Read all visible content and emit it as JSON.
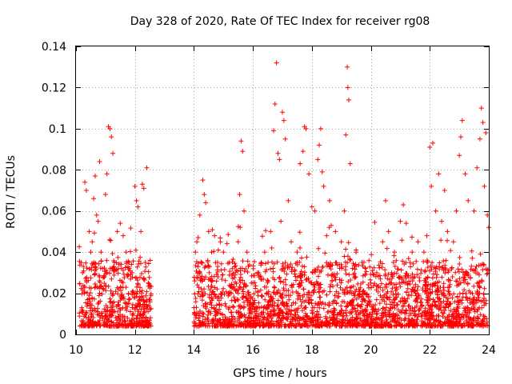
{
  "chart_data": {
    "type": "scatter",
    "title": "Day 328 of 2020, Rate Of TEC Index for receiver rg08",
    "xlabel": "GPS time / hours",
    "ylabel": "ROTI / TECUs",
    "xlim": [
      10,
      24
    ],
    "ylim": [
      0,
      0.14
    ],
    "x_ticks": [
      10,
      12,
      14,
      16,
      18,
      20,
      22,
      24
    ],
    "x_tick_labels": [
      "10",
      "12",
      "14",
      "16",
      "18",
      "20",
      "22",
      "24"
    ],
    "y_ticks": [
      0,
      0.02,
      0.04,
      0.06,
      0.08,
      0.1,
      0.12,
      0.14
    ],
    "y_tick_labels": [
      "0",
      "0.02",
      "0.04",
      "0.06",
      "0.08",
      "0.1",
      "0.12",
      "0.14"
    ],
    "grid": true,
    "marker": "+",
    "color": "#ff0000",
    "data_gap_hours": [
      12.55,
      14.0
    ],
    "series": [
      {
        "name": "ROTI",
        "points": [
          [
            10.2,
            0.012
          ],
          [
            10.25,
            0.033
          ],
          [
            10.3,
            0.074
          ],
          [
            10.35,
            0.07
          ],
          [
            10.45,
            0.05
          ],
          [
            10.5,
            0.04
          ],
          [
            10.55,
            0.045
          ],
          [
            10.6,
            0.066
          ],
          [
            10.65,
            0.077
          ],
          [
            10.7,
            0.058
          ],
          [
            10.75,
            0.055
          ],
          [
            10.8,
            0.084
          ],
          [
            10.85,
            0.04
          ],
          [
            10.9,
            0.032
          ],
          [
            10.95,
            0.028
          ],
          [
            11.0,
            0.068
          ],
          [
            11.05,
            0.078
          ],
          [
            11.1,
            0.101
          ],
          [
            11.15,
            0.1
          ],
          [
            11.2,
            0.096
          ],
          [
            11.25,
            0.088
          ],
          [
            11.3,
            0.035
          ],
          [
            11.4,
            0.05
          ],
          [
            11.5,
            0.054
          ],
          [
            11.6,
            0.048
          ],
          [
            11.7,
            0.04
          ],
          [
            11.8,
            0.035
          ],
          [
            11.9,
            0.03
          ],
          [
            12.0,
            0.072
          ],
          [
            12.05,
            0.065
          ],
          [
            12.1,
            0.062
          ],
          [
            12.2,
            0.05
          ],
          [
            12.25,
            0.073
          ],
          [
            12.3,
            0.071
          ],
          [
            12.35,
            0.035
          ],
          [
            12.4,
            0.081
          ],
          [
            12.45,
            0.025
          ],
          [
            14.05,
            0.04
          ],
          [
            14.1,
            0.045
          ],
          [
            14.2,
            0.058
          ],
          [
            14.3,
            0.075
          ],
          [
            14.35,
            0.068
          ],
          [
            14.4,
            0.064
          ],
          [
            14.5,
            0.05
          ],
          [
            14.6,
            0.04
          ],
          [
            14.7,
            0.048
          ],
          [
            14.8,
            0.035
          ],
          [
            14.9,
            0.045
          ],
          [
            15.0,
            0.04
          ],
          [
            15.2,
            0.035
          ],
          [
            15.3,
            0.032
          ],
          [
            15.4,
            0.03
          ],
          [
            15.5,
            0.045
          ],
          [
            15.55,
            0.068
          ],
          [
            15.6,
            0.094
          ],
          [
            15.65,
            0.089
          ],
          [
            15.7,
            0.06
          ],
          [
            15.8,
            0.04
          ],
          [
            16.0,
            0.025
          ],
          [
            16.2,
            0.03
          ],
          [
            16.4,
            0.04
          ],
          [
            16.6,
            0.05
          ],
          [
            16.7,
            0.099
          ],
          [
            16.75,
            0.112
          ],
          [
            16.8,
            0.132
          ],
          [
            16.85,
            0.088
          ],
          [
            16.9,
            0.085
          ],
          [
            16.95,
            0.055
          ],
          [
            17.0,
            0.108
          ],
          [
            17.05,
            0.104
          ],
          [
            17.1,
            0.095
          ],
          [
            17.2,
            0.065
          ],
          [
            17.3,
            0.045
          ],
          [
            17.5,
            0.04
          ],
          [
            17.6,
            0.083
          ],
          [
            17.7,
            0.089
          ],
          [
            17.75,
            0.101
          ],
          [
            17.8,
            0.1
          ],
          [
            17.9,
            0.078
          ],
          [
            18.0,
            0.062
          ],
          [
            18.1,
            0.06
          ],
          [
            18.2,
            0.085
          ],
          [
            18.25,
            0.092
          ],
          [
            18.3,
            0.1
          ],
          [
            18.35,
            0.079
          ],
          [
            18.4,
            0.072
          ],
          [
            18.5,
            0.048
          ],
          [
            18.6,
            0.065
          ],
          [
            18.8,
            0.05
          ],
          [
            19.0,
            0.045
          ],
          [
            19.1,
            0.06
          ],
          [
            19.15,
            0.097
          ],
          [
            19.2,
            0.13
          ],
          [
            19.22,
            0.12
          ],
          [
            19.25,
            0.114
          ],
          [
            19.3,
            0.083
          ],
          [
            19.5,
            0.04
          ],
          [
            19.7,
            0.035
          ],
          [
            20.0,
            0.025
          ],
          [
            20.2,
            0.03
          ],
          [
            20.4,
            0.045
          ],
          [
            20.5,
            0.065
          ],
          [
            20.6,
            0.05
          ],
          [
            20.8,
            0.04
          ],
          [
            21.0,
            0.055
          ],
          [
            21.1,
            0.063
          ],
          [
            21.2,
            0.054
          ],
          [
            21.4,
            0.04
          ],
          [
            21.6,
            0.045
          ],
          [
            21.8,
            0.04
          ],
          [
            21.9,
            0.048
          ],
          [
            22.0,
            0.091
          ],
          [
            22.05,
            0.072
          ],
          [
            22.1,
            0.093
          ],
          [
            22.2,
            0.06
          ],
          [
            22.3,
            0.078
          ],
          [
            22.4,
            0.055
          ],
          [
            22.5,
            0.07
          ],
          [
            22.6,
            0.05
          ],
          [
            22.8,
            0.045
          ],
          [
            22.9,
            0.06
          ],
          [
            23.0,
            0.087
          ],
          [
            23.05,
            0.096
          ],
          [
            23.1,
            0.104
          ],
          [
            23.2,
            0.078
          ],
          [
            23.3,
            0.065
          ],
          [
            23.5,
            0.06
          ],
          [
            23.6,
            0.081
          ],
          [
            23.7,
            0.095
          ],
          [
            23.75,
            0.11
          ],
          [
            23.8,
            0.103
          ],
          [
            23.85,
            0.072
          ],
          [
            23.9,
            0.098
          ],
          [
            23.95,
            0.058
          ],
          [
            24.0,
            0.052
          ]
        ]
      }
    ]
  }
}
